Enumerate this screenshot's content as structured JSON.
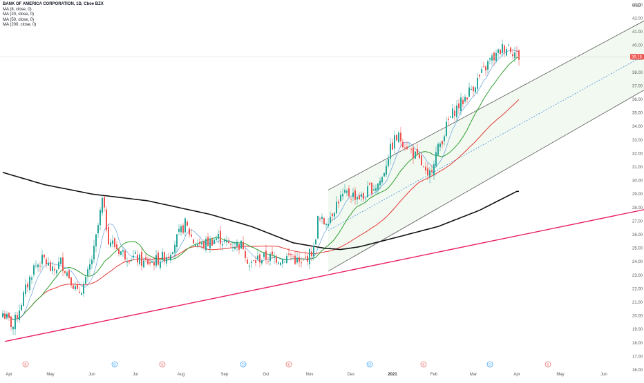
{
  "legend": {
    "title": "BANK OF AMERICA CORPORATION, 1D, Cboe BZX",
    "items": [
      "MA (8, close, 0)",
      "MA (20, close, 0)",
      "MA (50, close, 0)",
      "MA (200, close, 0)"
    ]
  },
  "chart_data": {
    "type": "candlestick",
    "currency": "USD",
    "ylim": [
      16.0,
      43.0
    ],
    "y_ticks": [
      "16.00",
      "17.00",
      "18.00",
      "19.00",
      "20.00",
      "21.00",
      "22.00",
      "23.00",
      "24.00",
      "25.00",
      "26.00",
      "27.00",
      "28.00",
      "29.00",
      "30.00",
      "31.00",
      "32.00",
      "33.00",
      "34.00",
      "35.00",
      "36.00",
      "37.00",
      "38.00",
      "39.00",
      "40.00",
      "41.00",
      "42.00",
      "43.00"
    ],
    "x_ticks": [
      {
        "label": "Apr",
        "bar": 3
      },
      {
        "label": "May",
        "bar": 23
      },
      {
        "label": "Jun",
        "bar": 43
      },
      {
        "label": "Jul",
        "bar": 64
      },
      {
        "label": "Aug",
        "bar": 86
      },
      {
        "label": "Sep",
        "bar": 107
      },
      {
        "label": "Oct",
        "bar": 127
      },
      {
        "label": "Nov",
        "bar": 148
      },
      {
        "label": "Dec",
        "bar": 168
      },
      {
        "label": "2021",
        "bar": 188,
        "bold": true
      },
      {
        "label": "Feb",
        "bar": 208
      },
      {
        "label": "Mar",
        "bar": 227
      },
      {
        "label": "Apr",
        "bar": 248
      },
      {
        "label": "May",
        "bar": 269
      },
      {
        "label": "Jun",
        "bar": 290
      }
    ],
    "last_price": {
      "label": "39.15",
      "value": 39.15,
      "color": "#ef5350"
    },
    "colors": {
      "up": "#26a69a",
      "down": "#ef5350",
      "ma8": "#4a90d9",
      "ma20": "#2e9e2e",
      "ma50": "#e53935",
      "ma200": "#111111",
      "trendline": "#e91e63",
      "channel": "#4caf50"
    },
    "close_anchors": [
      [
        0,
        20.2
      ],
      [
        5,
        19.2
      ],
      [
        10,
        21.5
      ],
      [
        15,
        23.6
      ],
      [
        20,
        24.2
      ],
      [
        24,
        23.2
      ],
      [
        28,
        24.0
      ],
      [
        33,
        22.7
      ],
      [
        36,
        21.6
      ],
      [
        40,
        22.5
      ],
      [
        44,
        24.8
      ],
      [
        48,
        28.5
      ],
      [
        51,
        25.7
      ],
      [
        55,
        25.0
      ],
      [
        60,
        24.4
      ],
      [
        64,
        24.3
      ],
      [
        68,
        23.9
      ],
      [
        72,
        24.0
      ],
      [
        76,
        24.2
      ],
      [
        80,
        24.6
      ],
      [
        84,
        25.7
      ],
      [
        88,
        26.8
      ],
      [
        92,
        25.5
      ],
      [
        96,
        25.2
      ],
      [
        100,
        25.5
      ],
      [
        104,
        25.8
      ],
      [
        108,
        25.3
      ],
      [
        112,
        25.3
      ],
      [
        116,
        25.2
      ],
      [
        119,
        23.7
      ],
      [
        123,
        24.2
      ],
      [
        127,
        24.3
      ],
      [
        131,
        24.3
      ],
      [
        135,
        24.2
      ],
      [
        139,
        24.5
      ],
      [
        144,
        23.7
      ],
      [
        147,
        24.4
      ],
      [
        150,
        24.9
      ],
      [
        152,
        27.1
      ],
      [
        155,
        26.9
      ],
      [
        158,
        27.4
      ],
      [
        162,
        28.6
      ],
      [
        166,
        29.0
      ],
      [
        170,
        28.9
      ],
      [
        174,
        28.7
      ],
      [
        177,
        29.4
      ],
      [
        180,
        29.6
      ],
      [
        183,
        30.2
      ],
      [
        186,
        31.9
      ],
      [
        189,
        33.0
      ],
      [
        191,
        33.2
      ],
      [
        195,
        32.6
      ],
      [
        198,
        32.0
      ],
      [
        202,
        31.2
      ],
      [
        205,
        30.0
      ],
      [
        208,
        31.6
      ],
      [
        212,
        33.1
      ],
      [
        215,
        34.4
      ],
      [
        218,
        35.2
      ],
      [
        222,
        35.9
      ],
      [
        225,
        36.6
      ],
      [
        228,
        37.2
      ],
      [
        232,
        38.1
      ],
      [
        235,
        38.9
      ],
      [
        238,
        39.2
      ],
      [
        241,
        39.8
      ],
      [
        244,
        40.0
      ],
      [
        246,
        39.6
      ],
      [
        248,
        39.3
      ],
      [
        249,
        39.15
      ]
    ],
    "ma200_anchors": [
      [
        0,
        30.6
      ],
      [
        20,
        29.7
      ],
      [
        43,
        29.0
      ],
      [
        70,
        28.5
      ],
      [
        100,
        27.5
      ],
      [
        120,
        26.6
      ],
      [
        140,
        25.4
      ],
      [
        155,
        25.0
      ],
      [
        163,
        24.9
      ],
      [
        172,
        25.1
      ],
      [
        190,
        25.8
      ],
      [
        210,
        26.6
      ],
      [
        230,
        27.8
      ],
      [
        248,
        29.2
      ]
    ],
    "trendline": {
      "from": [
        1,
        18.1
      ],
      "to": [
        330,
        28.5
      ]
    },
    "channel": {
      "upper": {
        "from": [
          157,
          29.3
        ],
        "to": [
          330,
          43.5
        ]
      },
      "middle": {
        "from": [
          157,
          26.3
        ],
        "to": [
          330,
          41.0
        ]
      },
      "lower": {
        "from": [
          157,
          23.3
        ],
        "to": [
          330,
          38.5
        ]
      }
    },
    "events": [
      {
        "bar": 11,
        "label": "E"
      },
      {
        "bar": 54,
        "label": "D"
      },
      {
        "bar": 77,
        "label": "E"
      },
      {
        "bar": 116,
        "label": "D"
      },
      {
        "bar": 138,
        "label": "E"
      },
      {
        "bar": 177,
        "label": "D"
      },
      {
        "bar": 203,
        "label": "E"
      },
      {
        "bar": 235,
        "label": "D"
      },
      {
        "bar": 263,
        "label": "E"
      }
    ]
  }
}
